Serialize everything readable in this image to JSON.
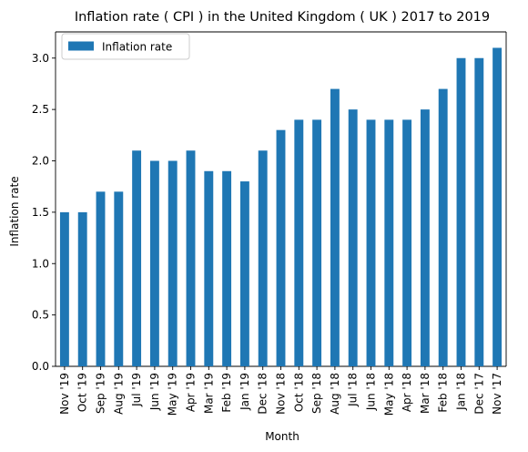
{
  "chart_data": {
    "type": "bar",
    "title": "Inflation rate ( CPI ) in the United Kingdom ( UK ) 2017 to 2019",
    "xlabel": "Month",
    "ylabel": "Inflation rate",
    "categories": [
      "Nov '19",
      "Oct '19",
      "Sep '19",
      "Aug '19",
      "Jul '19",
      "Jun '19",
      "May '19",
      "Apr '19",
      "Mar '19",
      "Feb '19",
      "Jan '19",
      "Dec '18",
      "Nov '18",
      "Oct '18",
      "Sep '18",
      "Aug '18",
      "Jul '18",
      "Jun '18",
      "May '18",
      "Apr '18",
      "Mar '18",
      "Feb '18",
      "Jan '18",
      "Dec '17",
      "Nov '17"
    ],
    "series": [
      {
        "name": "Inflation rate",
        "values": [
          1.5,
          1.5,
          1.7,
          1.7,
          2.1,
          2.0,
          2.0,
          2.1,
          1.9,
          1.9,
          1.8,
          2.1,
          2.3,
          2.4,
          2.4,
          2.7,
          2.5,
          2.4,
          2.4,
          2.4,
          2.5,
          2.7,
          3.0,
          3.0,
          3.1
        ]
      }
    ],
    "ylim": [
      0,
      3.255
    ],
    "yticks": [
      "0.0",
      "0.5",
      "1.0",
      "1.5",
      "2.0",
      "2.5",
      "3.0"
    ],
    "grid": false,
    "legend_position": "top-left",
    "bar_color": "#1f77b4"
  }
}
